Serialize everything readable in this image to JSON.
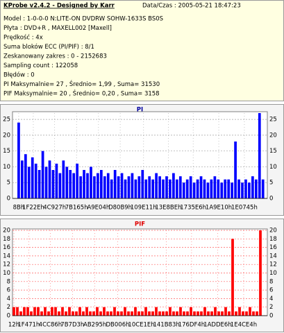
{
  "header": {
    "title": "KProbe v2.4.2 - Designed by Karr",
    "datetime": "Data/Czas : 2005-05-21 18:47:23",
    "lines": [
      "Model : 1-0-0-0 N:LITE-ON DVDRW SOHW-1633S BS0S",
      "Płyta : DVD+R , MAXELL002 [Maxell]",
      "Prędkość : 4x",
      "Suma bloków ECC (PI/PIF) : 8/1",
      "Zeskanowany zakres : 0 - 2152683",
      "Sampling count : 122058",
      "Błędów : 0",
      "PI Maksymalnie= 27 , Średnio= 1,99 , Suma= 31530",
      "PIF Maksymalnie= 20 , Średnio= 0,20 , Suma= 3158"
    ]
  },
  "chart_data": [
    {
      "type": "bar",
      "title": "PI",
      "title_color": "#0000a0",
      "color": "#0000ff",
      "grid": true,
      "grid_color": "#a0a0a0",
      "xlim": [
        -54000,
        2168000
      ],
      "xticks": [
        {
          "value": 139,
          "label": "8Bh"
        },
        {
          "value": 127534,
          "label": "1F22Eh"
        },
        {
          "value": 313639,
          "label": "4C927h"
        },
        {
          "value": 504165,
          "label": "7B165h"
        },
        {
          "value": 695812,
          "label": "A9E04h"
        },
        {
          "value": 884921,
          "label": "D80B9h"
        },
        {
          "value": 1089041,
          "label": "109E11h"
        },
        {
          "value": 1304766,
          "label": "13E8BEh"
        },
        {
          "value": 1521126,
          "label": "1735E6h"
        },
        {
          "value": 1744400,
          "label": "1A9E10h"
        },
        {
          "value": 1967941,
          "label": "1E0745h"
        }
      ],
      "ylim": [
        0,
        27
      ],
      "yticks": [
        0,
        5,
        10,
        15,
        20,
        25
      ],
      "x": [
        0,
        30000,
        60000,
        90000,
        120000,
        150000,
        180000,
        210000,
        240000,
        270000,
        300000,
        330000,
        360000,
        390000,
        420000,
        450000,
        480000,
        510000,
        540000,
        570000,
        600000,
        630000,
        660000,
        690000,
        720000,
        750000,
        780000,
        810000,
        840000,
        870000,
        900000,
        930000,
        960000,
        990000,
        1020000,
        1050000,
        1080000,
        1110000,
        1140000,
        1170000,
        1200000,
        1230000,
        1260000,
        1290000,
        1320000,
        1350000,
        1380000,
        1410000,
        1440000,
        1470000,
        1500000,
        1530000,
        1560000,
        1590000,
        1620000,
        1650000,
        1680000,
        1710000,
        1740000,
        1770000,
        1800000,
        1830000,
        1860000,
        1890000,
        1920000,
        1950000,
        1980000,
        2010000,
        2040000,
        2070000,
        2100000,
        2130000
      ],
      "values": [
        24,
        12,
        14,
        10,
        13,
        11,
        9,
        15,
        10,
        12,
        9,
        11,
        8,
        12,
        10,
        9,
        8,
        11,
        7,
        9,
        8,
        10,
        7,
        8,
        9,
        7,
        8,
        6,
        9,
        7,
        8,
        6,
        7,
        8,
        6,
        7,
        9,
        6,
        7,
        6,
        8,
        7,
        6,
        7,
        6,
        8,
        6,
        7,
        5,
        6,
        7,
        5,
        6,
        7,
        6,
        5,
        6,
        7,
        6,
        5,
        6,
        6,
        5,
        18,
        6,
        5,
        6,
        5,
        7,
        6,
        27,
        6
      ]
    },
    {
      "type": "bar",
      "title": "PIF",
      "title_color": "#e00000",
      "color": "#ff0000",
      "grid": true,
      "grid_color": "#ff6060",
      "xlim": [
        -12000,
        2190000
      ],
      "xticks": [
        {
          "value": 18,
          "label": "12h"
        },
        {
          "value": 128113,
          "label": "1F471h"
        },
        {
          "value": 314502,
          "label": "4CC86h"
        },
        {
          "value": 505811,
          "label": "7B7D3h"
        },
        {
          "value": 700053,
          "label": "AB295h"
        },
        {
          "value": 897030,
          "label": "DB006h"
        },
        {
          "value": 1101342,
          "label": "10CE1Eh"
        },
        {
          "value": 1317763,
          "label": "141B83h"
        },
        {
          "value": 1535476,
          "label": "176DF4h"
        },
        {
          "value": 1760742,
          "label": "1ADDE6h"
        },
        {
          "value": 1985764,
          "label": "1E4CE4h"
        }
      ],
      "ylim": [
        0,
        20
      ],
      "yticks": [
        0,
        2,
        4,
        6,
        8,
        10,
        12,
        14,
        16,
        18,
        20
      ],
      "x": [
        0,
        30000,
        60000,
        90000,
        120000,
        150000,
        180000,
        210000,
        240000,
        270000,
        300000,
        330000,
        360000,
        390000,
        420000,
        450000,
        480000,
        510000,
        540000,
        570000,
        600000,
        630000,
        660000,
        690000,
        720000,
        750000,
        780000,
        810000,
        840000,
        870000,
        900000,
        930000,
        960000,
        990000,
        1020000,
        1050000,
        1080000,
        1110000,
        1140000,
        1170000,
        1200000,
        1230000,
        1260000,
        1290000,
        1320000,
        1350000,
        1380000,
        1410000,
        1440000,
        1470000,
        1500000,
        1530000,
        1560000,
        1590000,
        1620000,
        1650000,
        1680000,
        1710000,
        1740000,
        1770000,
        1800000,
        1830000,
        1860000,
        1890000,
        1920000,
        1950000,
        1980000,
        2010000,
        2040000,
        2070000,
        2100000,
        2130000
      ],
      "values": [
        2,
        2,
        1,
        2,
        2,
        1,
        2,
        2,
        1,
        2,
        1,
        2,
        2,
        1,
        2,
        1,
        2,
        1,
        1,
        2,
        1,
        2,
        1,
        1,
        2,
        1,
        2,
        1,
        1,
        2,
        1,
        1,
        2,
        1,
        1,
        2,
        1,
        1,
        2,
        1,
        1,
        2,
        1,
        1,
        1,
        2,
        1,
        1,
        2,
        1,
        1,
        2,
        1,
        1,
        1,
        2,
        1,
        1,
        2,
        1,
        1,
        2,
        1,
        18,
        1,
        2,
        1,
        1,
        2,
        1,
        1,
        20
      ]
    }
  ]
}
